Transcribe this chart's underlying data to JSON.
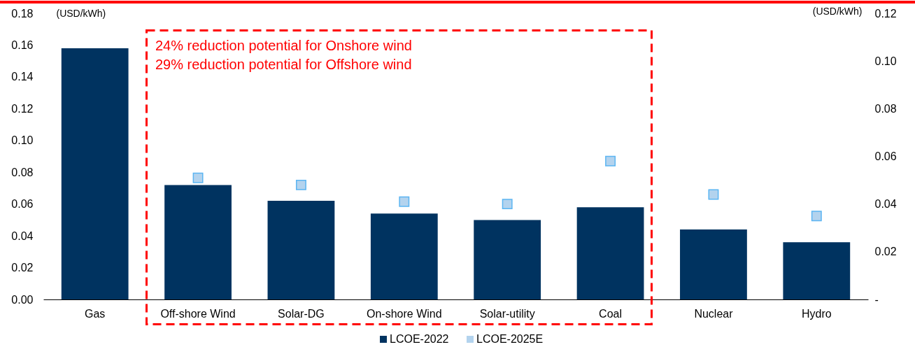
{
  "chart_data": {
    "type": "bar",
    "ylabel": "(USD/kWh)",
    "y2label": "(USD/kWh)",
    "categories": [
      "Gas",
      "Off-shore Wind",
      "Solar-DG",
      "On-shore Wind",
      "Solar-utility",
      "Coal",
      "Nuclear",
      "Hydro"
    ],
    "series": [
      {
        "name": "LCOE-2022",
        "color": "#003360",
        "values": [
          0.158,
          0.072,
          0.062,
          0.054,
          0.05,
          0.058,
          0.044,
          0.036
        ]
      },
      {
        "name": "LCOE-2025E",
        "type": "scatter",
        "axis": "y2",
        "marker": "square",
        "color": "#b3d3ee",
        "values": [
          null,
          0.051,
          0.048,
          0.041,
          0.04,
          0.058,
          0.044,
          0.035
        ]
      }
    ],
    "ylim": [
      0,
      0.18
    ],
    "yticks": [
      {
        "value": 0,
        "label": "0.00"
      },
      0.02,
      0.04,
      0.06,
      0.08,
      {
        "value": 0.1,
        "label": "0.10"
      },
      0.12,
      0.14,
      0.16,
      0.18
    ],
    "y2lim": [
      0,
      0.12
    ],
    "y2ticks": [
      {
        "value": 0,
        "label": "-"
      },
      0.02,
      0.04,
      0.06,
      0.08,
      {
        "value": 0.1,
        "label": "0.10"
      },
      0.12
    ],
    "legend": "bottom",
    "annotations": [
      "24% reduction potential for Onshore wind",
      "29% reduction potential for Offshore wind"
    ]
  }
}
